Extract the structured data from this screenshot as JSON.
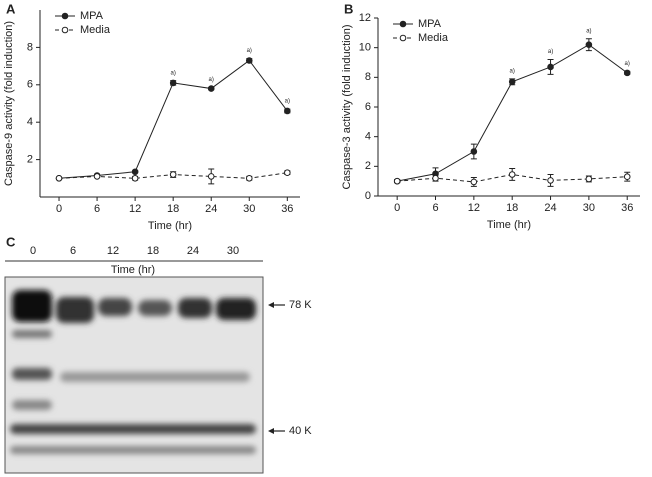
{
  "chart_data": [
    {
      "type": "line",
      "panel": "A",
      "xlabel": "Time (hr)",
      "ylabel": "Caspase-9 activity (fold induction)",
      "x": [
        0,
        6,
        12,
        18,
        24,
        30,
        36
      ],
      "xlim": [
        -3,
        38
      ],
      "xticks": [
        0,
        6,
        12,
        18,
        24,
        30,
        36
      ],
      "ylim": [
        0,
        10
      ],
      "yticks": [
        2,
        4,
        6,
        8
      ],
      "legend": "upper left",
      "series": [
        {
          "name": "MPA",
          "color": "#222222",
          "marker": "filled",
          "dash": "solid",
          "values": [
            1.0,
            1.15,
            1.35,
            6.1,
            5.8,
            7.3,
            4.6
          ],
          "errors": [
            0.05,
            0.05,
            0.05,
            0.12,
            0.06,
            0.1,
            0.1
          ]
        },
        {
          "name": "Media",
          "color": "#222222",
          "marker": "open",
          "dash": "dashed",
          "values": [
            1.0,
            1.1,
            1.0,
            1.2,
            1.1,
            1.0,
            1.3
          ],
          "errors": [
            0.05,
            0.05,
            0.1,
            0.15,
            0.4,
            0.1,
            0.1
          ]
        }
      ],
      "annotations": [
        {
          "x": 18,
          "text": "a)"
        },
        {
          "x": 24,
          "text": "a)"
        },
        {
          "x": 30,
          "text": "a)"
        },
        {
          "x": 36,
          "text": "a)"
        }
      ]
    },
    {
      "type": "line",
      "panel": "B",
      "xlabel": "Time (hr)",
      "ylabel": "Caspase-3 activity (fold induction)",
      "x": [
        0,
        6,
        12,
        18,
        24,
        30,
        36
      ],
      "xlim": [
        -3,
        38
      ],
      "xticks": [
        0,
        6,
        12,
        18,
        24,
        30,
        36
      ],
      "ylim": [
        0,
        12
      ],
      "yticks": [
        0,
        2,
        4,
        6,
        8,
        10,
        12
      ],
      "legend": "upper left",
      "series": [
        {
          "name": "MPA",
          "color": "#222222",
          "marker": "filled",
          "dash": "solid",
          "values": [
            1.0,
            1.5,
            3.0,
            7.7,
            8.7,
            10.2,
            8.3
          ],
          "errors": [
            0.1,
            0.4,
            0.5,
            0.2,
            0.5,
            0.4,
            0.1
          ]
        },
        {
          "name": "Media",
          "color": "#222222",
          "marker": "open",
          "dash": "dashed",
          "values": [
            1.0,
            1.2,
            0.95,
            1.45,
            1.05,
            1.15,
            1.3
          ],
          "errors": [
            0.1,
            0.2,
            0.3,
            0.4,
            0.4,
            0.2,
            0.3
          ]
        }
      ],
      "annotations": [
        {
          "x": 18,
          "text": "a)"
        },
        {
          "x": 24,
          "text": "a)"
        },
        {
          "x": 30,
          "text": "a)"
        },
        {
          "x": 36,
          "text": "a)"
        }
      ]
    }
  ],
  "blot": {
    "panel": "C",
    "lanes": [
      "0",
      "6",
      "12",
      "18",
      "24",
      "30"
    ],
    "lane_title": "Time (hr)",
    "markers": [
      "78 K",
      "40 K"
    ]
  }
}
